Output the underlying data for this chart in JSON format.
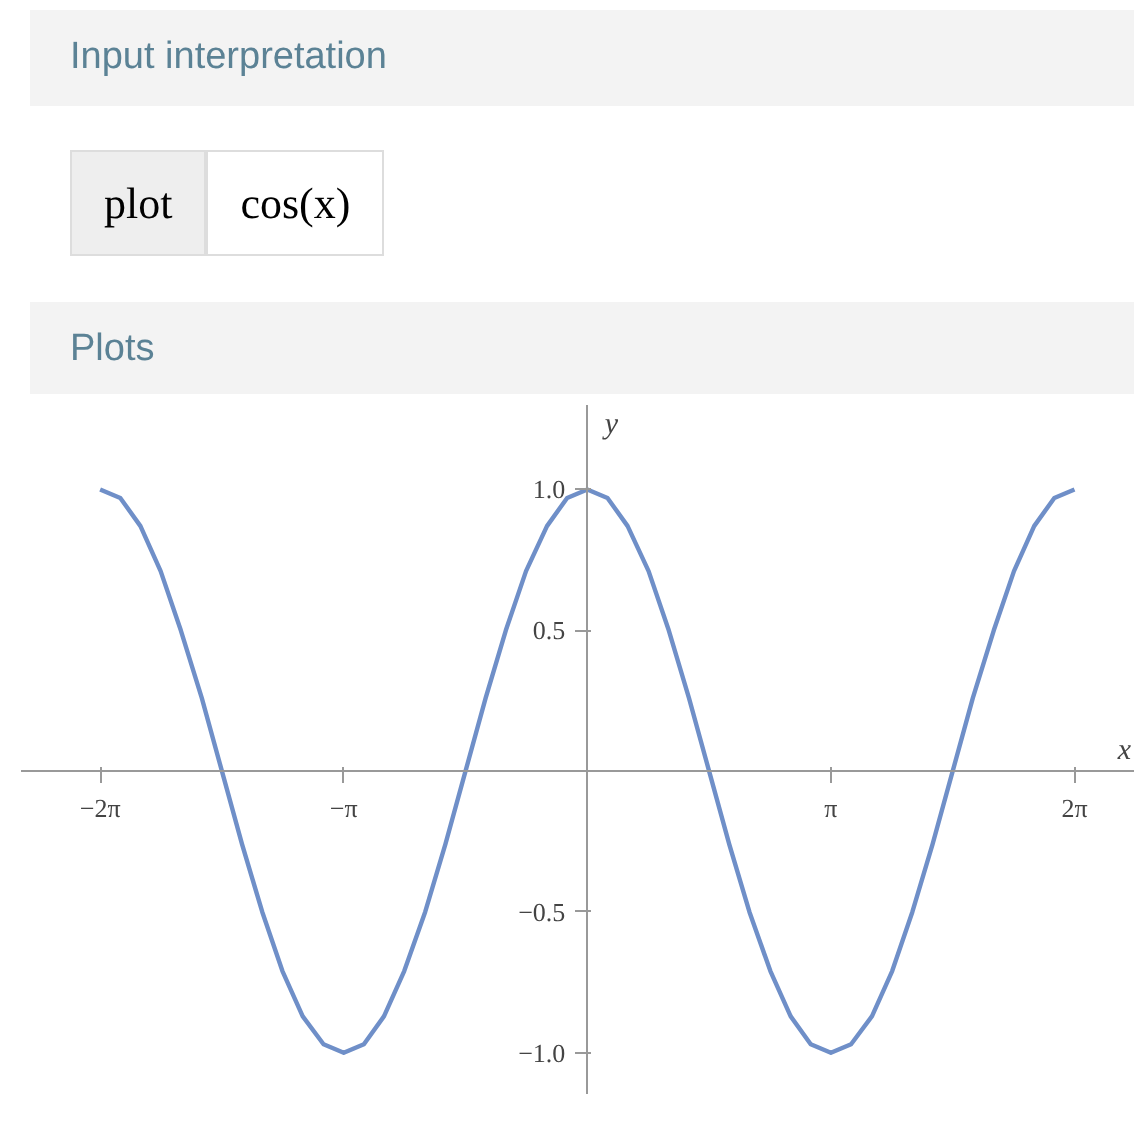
{
  "chart_data": {
    "type": "line",
    "title": "Plots",
    "annotations": [
      "Input interpretation",
      "plot",
      "cos(x)"
    ],
    "xlabel": "x",
    "ylabel": "y",
    "x": [
      -6.28,
      -6.02,
      -5.76,
      -5.5,
      -5.24,
      -4.97,
      -4.71,
      -4.45,
      -4.19,
      -3.93,
      -3.67,
      -3.4,
      -3.14,
      -2.88,
      -2.62,
      -2.36,
      -2.09,
      -1.83,
      -1.57,
      -1.31,
      -1.05,
      -0.79,
      -0.52,
      -0.26,
      0,
      0.26,
      0.52,
      0.79,
      1.05,
      1.31,
      1.57,
      1.83,
      2.09,
      2.36,
      2.62,
      2.88,
      3.14,
      3.4,
      3.67,
      3.93,
      4.19,
      4.45,
      4.71,
      4.97,
      5.24,
      5.5,
      5.76,
      6.02,
      6.28
    ],
    "series": [
      {
        "color": "#6f8fc8",
        "values": [
          1,
          0.97,
          0.87,
          0.71,
          0.5,
          0.26,
          0,
          -0.26,
          -0.5,
          -0.71,
          -0.87,
          -0.97,
          -1,
          -0.97,
          -0.87,
          -0.71,
          -0.5,
          -0.26,
          0,
          0.26,
          0.5,
          0.71,
          0.87,
          0.97,
          1,
          0.97,
          0.87,
          0.71,
          0.5,
          0.26,
          0,
          -0.26,
          -0.5,
          -0.71,
          -0.87,
          -0.97,
          -1,
          -0.97,
          -0.87,
          -0.71,
          -0.5,
          -0.26,
          0,
          0.26,
          0.5,
          0.71,
          0.87,
          0.97,
          1
        ]
      }
    ],
    "xlim": [
      -7.3,
      7.06
    ],
    "ylim": [
      -1.15,
      1.3
    ],
    "xticks": [
      {
        "value": -6.28,
        "label": "−2π"
      },
      {
        "value": -3.14,
        "label": "−π"
      },
      {
        "value": 3.14,
        "label": "π"
      },
      {
        "value": 6.28,
        "label": "2π"
      }
    ],
    "yticks": [
      {
        "value": -1.0,
        "label": "−1.0"
      },
      {
        "value": -0.5,
        "label": "−0.5"
      },
      {
        "value": 0.5,
        "label": "0.5"
      },
      {
        "value": 1.0,
        "label": "1.0"
      }
    ],
    "marker": "none",
    "line_style": "solid"
  }
}
